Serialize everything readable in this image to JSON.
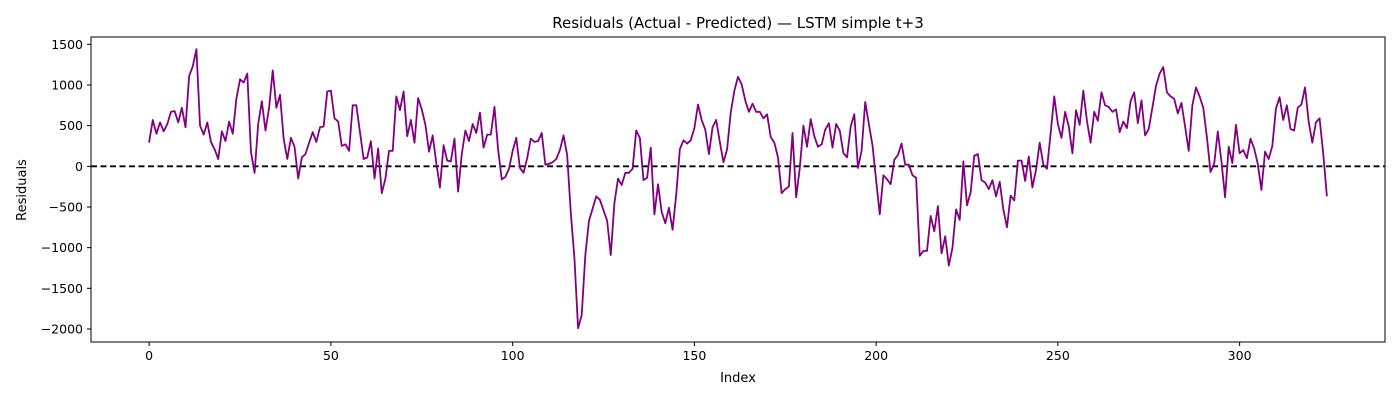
{
  "chart_data": {
    "type": "line",
    "title": "Residuals (Actual - Predicted) — LSTM simple t+3",
    "xlabel": "Index",
    "ylabel": "Residuals",
    "xlim": [
      -16,
      340
    ],
    "ylim": [
      -2160,
      1590
    ],
    "x_ticks": [
      0,
      50,
      100,
      150,
      200,
      250,
      300
    ],
    "y_ticks": [
      -2000,
      -1500,
      -1000,
      -500,
      0,
      500,
      1000,
      1500
    ],
    "grid": false,
    "reference_line": {
      "y": 0,
      "style": "dashed",
      "color": "#000000"
    },
    "series": [
      {
        "color": "#800080",
        "x_start": 0,
        "values": [
          300,
          570,
          400,
          540,
          430,
          520,
          670,
          680,
          540,
          720,
          480,
          1110,
          1230,
          1440,
          500,
          390,
          540,
          300,
          210,
          90,
          430,
          310,
          550,
          400,
          830,
          1070,
          1030,
          1140,
          180,
          -80,
          520,
          800,
          440,
          720,
          1180,
          720,
          880,
          340,
          90,
          350,
          240,
          -150,
          110,
          150,
          290,
          420,
          300,
          480,
          490,
          920,
          930,
          590,
          550,
          250,
          270,
          190,
          750,
          750,
          420,
          90,
          110,
          310,
          -150,
          220,
          -330,
          -150,
          190,
          190,
          860,
          690,
          920,
          370,
          570,
          290,
          840,
          700,
          510,
          180,
          380,
          40,
          -260,
          260,
          70,
          60,
          340,
          -310,
          150,
          440,
          310,
          520,
          410,
          660,
          230,
          390,
          390,
          730,
          210,
          -160,
          -130,
          -30,
          190,
          350,
          -20,
          -80,
          100,
          340,
          300,
          310,
          410,
          20,
          30,
          50,
          90,
          200,
          380,
          140,
          -570,
          -1130,
          -1990,
          -1830,
          -1090,
          -670,
          -520,
          -370,
          -410,
          -540,
          -670,
          -1090,
          -450,
          -150,
          -230,
          -80,
          -80,
          -30,
          440,
          350,
          -170,
          -140,
          230,
          -590,
          -220,
          -560,
          -700,
          -510,
          -780,
          -350,
          210,
          320,
          280,
          320,
          470,
          760,
          570,
          450,
          150,
          480,
          570,
          300,
          50,
          210,
          660,
          930,
          1100,
          1010,
          810,
          670,
          770,
          670,
          670,
          590,
          640,
          360,
          290,
          110,
          -330,
          -280,
          -250,
          410,
          -380,
          -20,
          500,
          240,
          580,
          370,
          240,
          270,
          450,
          530,
          230,
          520,
          440,
          160,
          110,
          490,
          640,
          -20,
          190,
          790,
          520,
          260,
          -170,
          -590,
          -110,
          -160,
          -220,
          80,
          140,
          280,
          20,
          20,
          -110,
          -140,
          -1100,
          -1040,
          -1040,
          -610,
          -800,
          -490,
          -1070,
          -860,
          -1220,
          -1000,
          -530,
          -660,
          60,
          -480,
          -320,
          130,
          150,
          -170,
          -200,
          -280,
          -170,
          -370,
          -190,
          -530,
          -750,
          -360,
          -420,
          70,
          70,
          -180,
          120,
          -260,
          -40,
          290,
          20,
          -30,
          400,
          860,
          520,
          350,
          670,
          490,
          160,
          690,
          510,
          930,
          560,
          290,
          670,
          560,
          910,
          750,
          730,
          670,
          700,
          420,
          550,
          470,
          800,
          910,
          530,
          810,
          380,
          460,
          720,
          990,
          1140,
          1220,
          910,
          860,
          830,
          650,
          780,
          490,
          190,
          750,
          970,
          860,
          720,
          360,
          -70,
          30,
          430,
          60,
          -380,
          240,
          40,
          510,
          160,
          200,
          100,
          340,
          220,
          30,
          -290,
          180,
          90,
          250,
          710,
          850,
          570,
          750,
          460,
          440,
          720,
          760,
          970,
          550,
          290,
          540,
          590,
          160,
          -360
        ]
      }
    ]
  }
}
